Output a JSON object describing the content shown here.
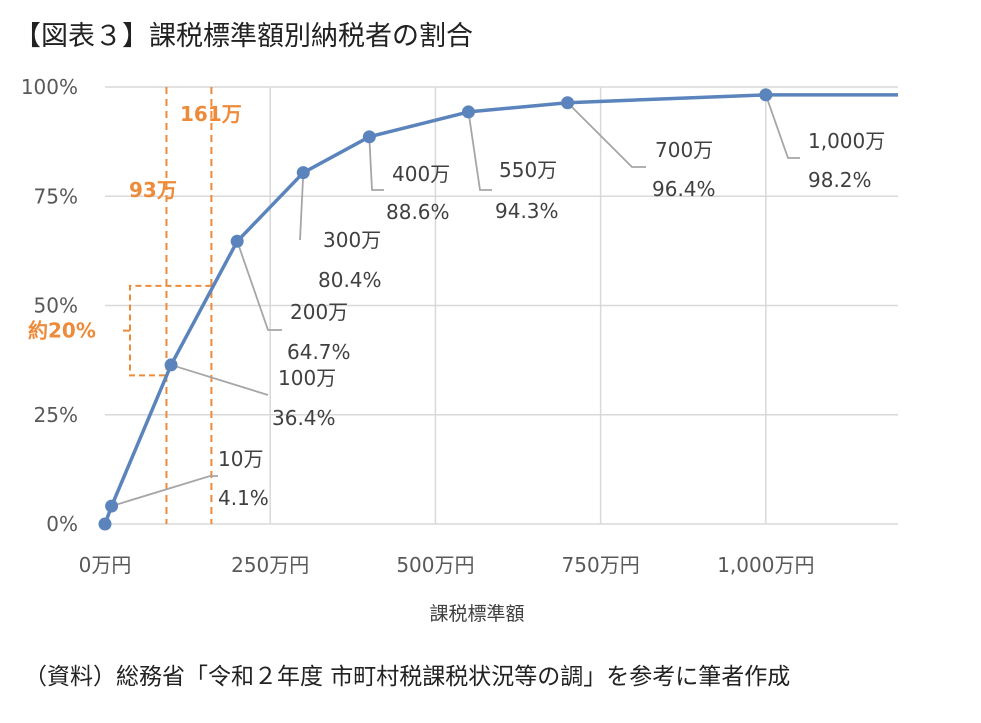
{
  "title": "【図表３】課税標準額別納税者の割合",
  "source": "（資料）総務省「令和２年度 市町村税課税状況等の調」を参考に筆者作成",
  "colors": {
    "line": "#5B84BC",
    "annotation": "#ED8B3A",
    "leader": "#A6A6A6",
    "grid": "#D9D9D9"
  },
  "chart_data": {
    "type": "line",
    "xlabel": "課税標準額",
    "ylabel": "",
    "xlim": [
      0,
      1200
    ],
    "ylim": [
      0,
      100
    ],
    "x_ticks": [
      0,
      250,
      500,
      750,
      1000
    ],
    "x_tick_labels": [
      "0万円",
      "250万円",
      "500万円",
      "750万円",
      "1,000万円"
    ],
    "y_ticks": [
      0,
      25,
      50,
      75,
      100
    ],
    "y_tick_labels": [
      "0%",
      "25%",
      "50%",
      "75%",
      "100%"
    ],
    "grid": true,
    "series": [
      {
        "x": [
          0,
          10,
          100,
          200,
          300,
          400,
          550,
          700,
          1000,
          1200
        ],
        "y": [
          0,
          4.1,
          36.4,
          64.7,
          80.4,
          88.6,
          94.3,
          96.4,
          98.2,
          98.2
        ],
        "markers": [
          true,
          true,
          true,
          true,
          true,
          true,
          true,
          true,
          true,
          false
        ]
      }
    ],
    "data_labels": [
      {
        "x": 10,
        "y": 4.1,
        "name": "10万",
        "value": "4.1%"
      },
      {
        "x": 100,
        "y": 36.4,
        "name": "100万",
        "value": "36.4%"
      },
      {
        "x": 200,
        "y": 64.7,
        "name": "200万",
        "value": "64.7%"
      },
      {
        "x": 300,
        "y": 80.4,
        "name": "300万",
        "value": "80.4%"
      },
      {
        "x": 400,
        "y": 88.6,
        "name": "400万",
        "value": "88.6%"
      },
      {
        "x": 550,
        "y": 94.3,
        "name": "550万",
        "value": "94.3%"
      },
      {
        "x": 700,
        "y": 96.4,
        "name": "700万",
        "value": "96.4%"
      },
      {
        "x": 1000,
        "y": 98.2,
        "name": "1,000万",
        "value": "98.2%"
      }
    ],
    "annotations": {
      "vlines": [
        {
          "x": 93,
          "label": "93万"
        },
        {
          "x": 161,
          "label": "161万"
        }
      ],
      "bracket": {
        "y_from": 34,
        "y_to": 54.5,
        "label": "約20%"
      }
    }
  }
}
